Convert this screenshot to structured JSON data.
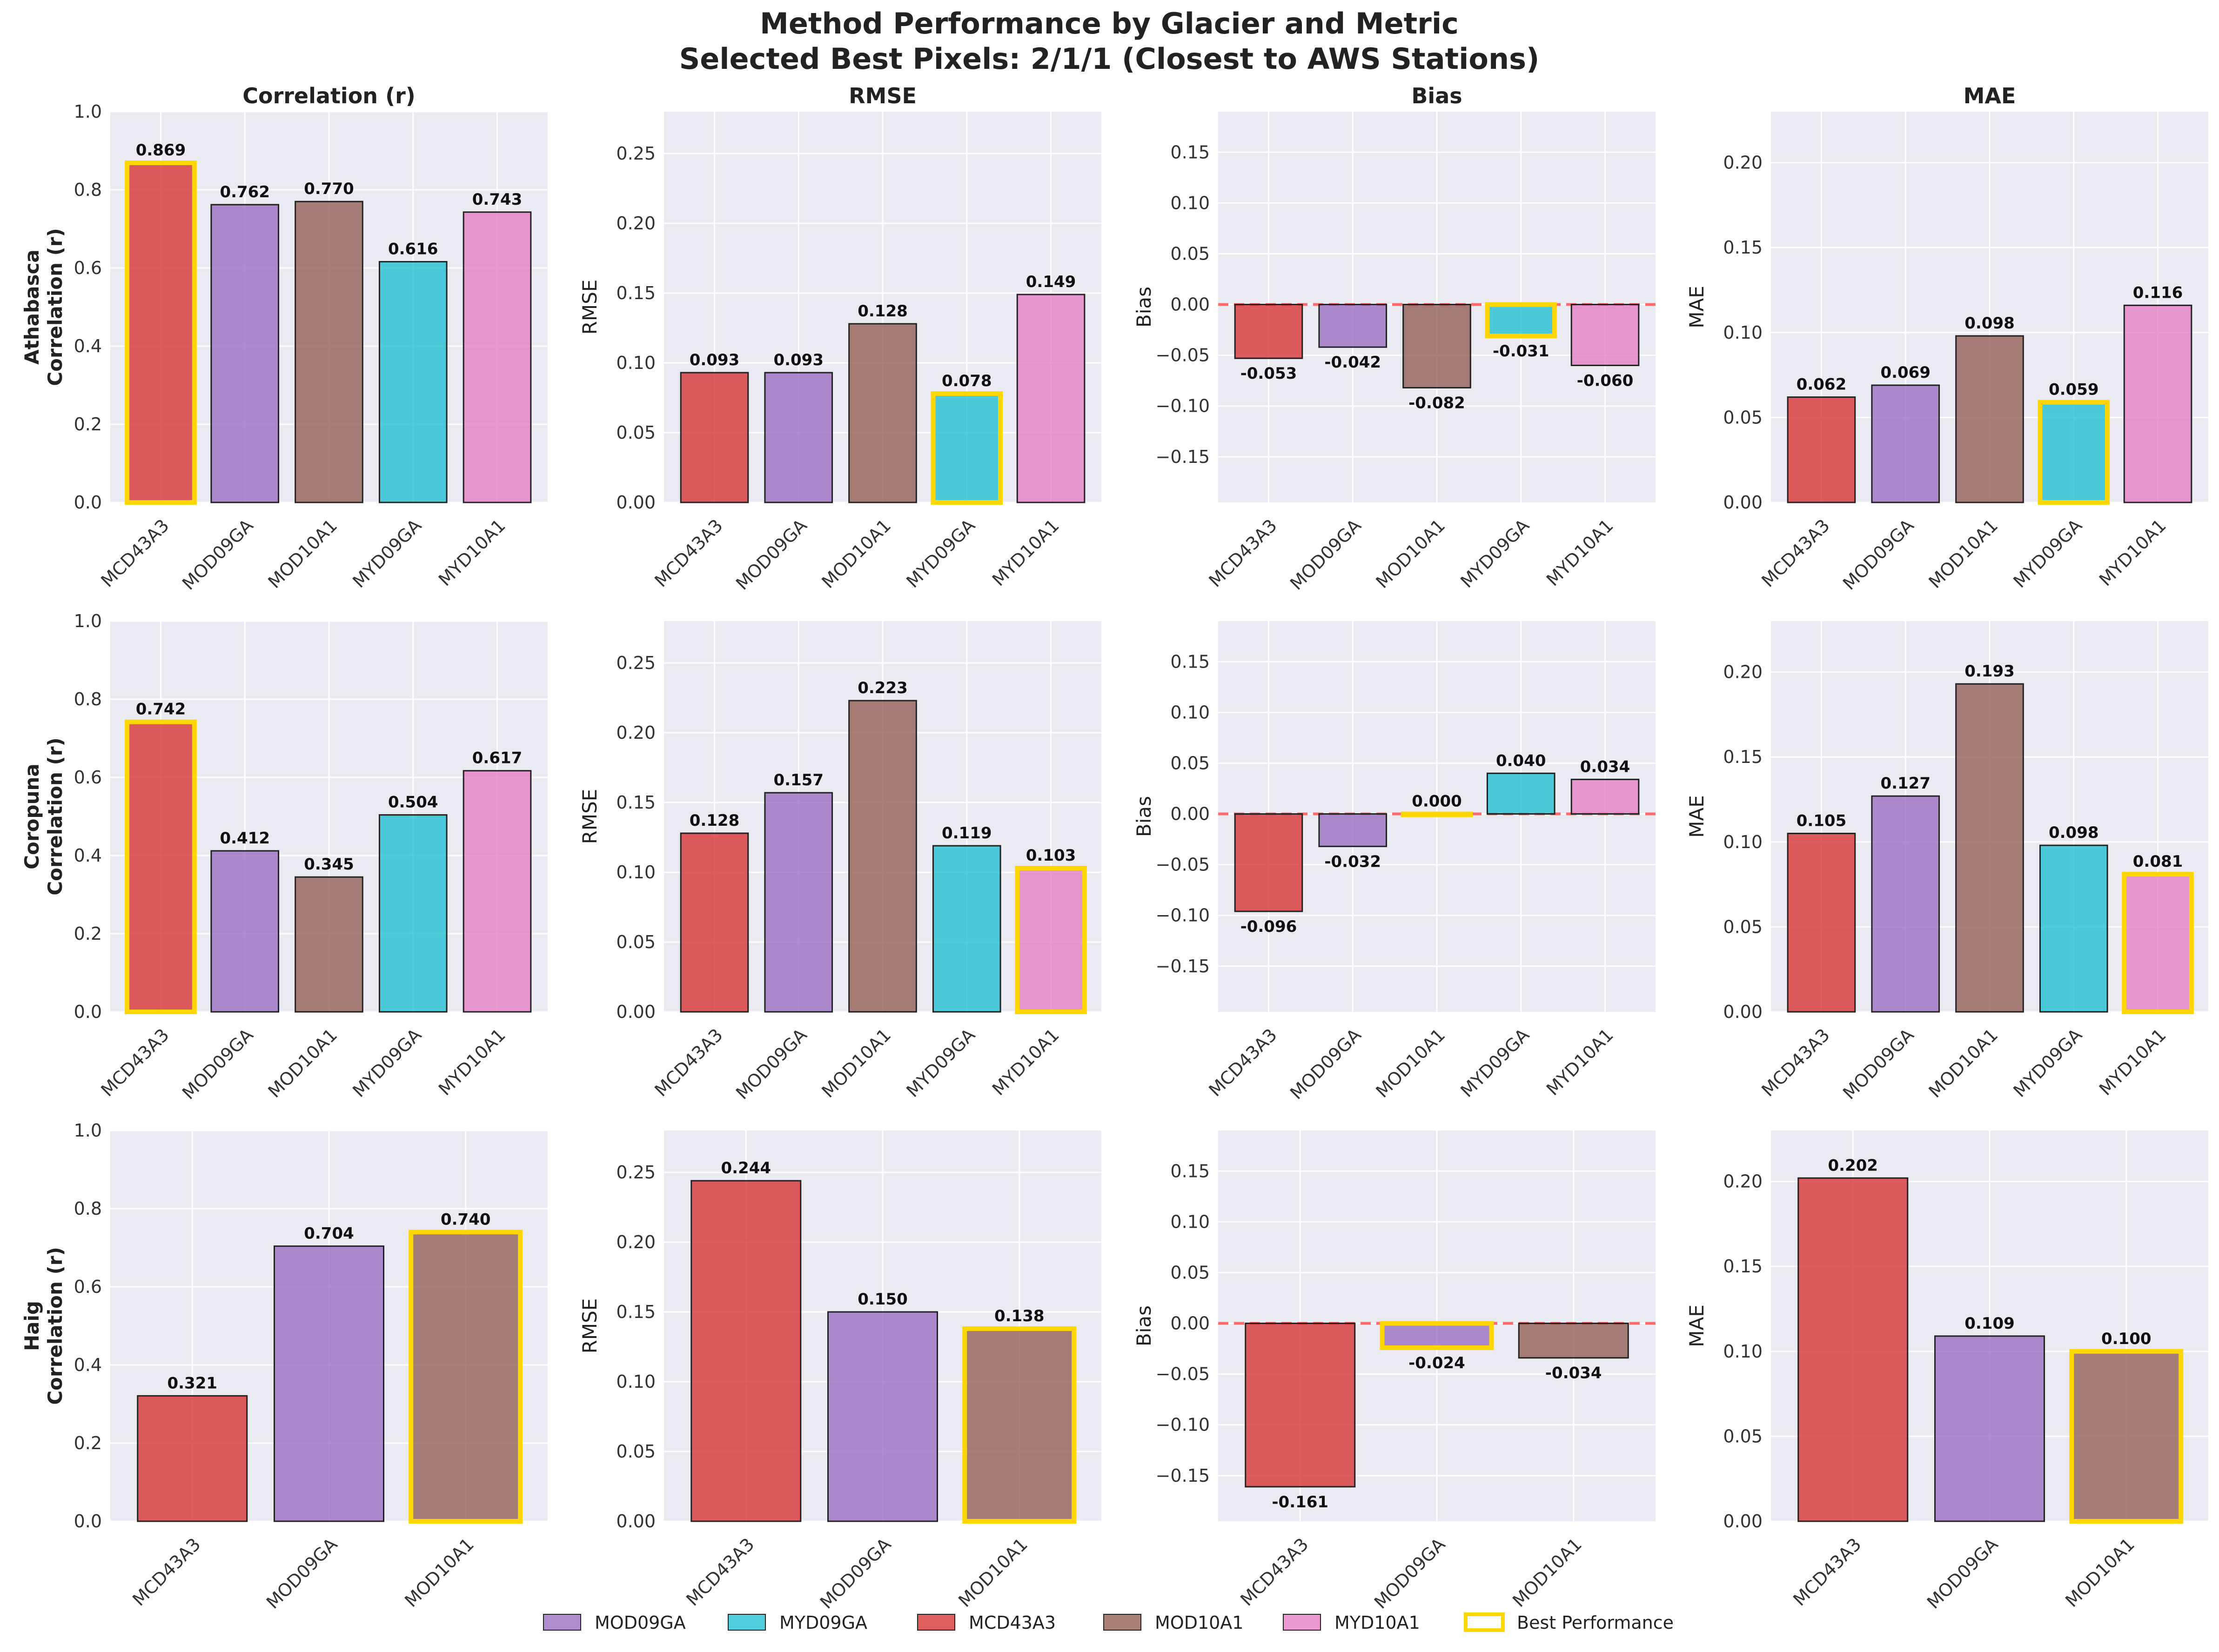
{
  "title_line1": "Method Performance by Glacier and Metric",
  "title_line2": "Selected Best Pixels: 2/1/1 (Closest to AWS Stations)",
  "colors": {
    "MCD43A3": "#d62728",
    "MOD09GA": "#9467bd",
    "MOD10A1": "#8c564b",
    "MYD09GA": "#17becf",
    "MYD10A1": "#e377c2",
    "best_outline": "#ffd700",
    "zero_line": "#ff6b6b",
    "panel_background": "#eaeaf2"
  },
  "legend": [
    {
      "label": "MOD09GA",
      "key": "MOD09GA"
    },
    {
      "label": "MYD09GA",
      "key": "MYD09GA"
    },
    {
      "label": "MCD43A3",
      "key": "MCD43A3"
    },
    {
      "label": "MOD10A1",
      "key": "MOD10A1"
    },
    {
      "label": "MYD10A1",
      "key": "MYD10A1"
    },
    {
      "label": "Best Performance",
      "key": "best"
    }
  ],
  "chart_data": {
    "type": "bar",
    "layout": "grid 3 rows (glaciers) x 4 columns (metrics)",
    "grid": true,
    "legend_position": "bottom",
    "metrics": [
      {
        "title": "Correlation (r)",
        "key": "r",
        "ylim": [
          0,
          1.0
        ],
        "ticks": [
          "0.0",
          "0.2",
          "0.4",
          "0.6",
          "0.8",
          "1.0"
        ],
        "tickvals": [
          0,
          0.2,
          0.4,
          0.6,
          0.8,
          1.0
        ],
        "zero_line": false
      },
      {
        "title": "RMSE",
        "key": "rmse",
        "ylabel": "RMSE",
        "ylim": [
          0,
          0.28
        ],
        "ticks": [
          "0.00",
          "0.05",
          "0.10",
          "0.15",
          "0.20",
          "0.25"
        ],
        "tickvals": [
          0,
          0.05,
          0.1,
          0.15,
          0.2,
          0.25
        ],
        "zero_line": false
      },
      {
        "title": "Bias",
        "key": "bias",
        "ylabel": "Bias",
        "ylim": [
          -0.195,
          0.19
        ],
        "ticks": [
          "−0.15",
          "−0.10",
          "−0.05",
          "0.00",
          "0.05",
          "0.10",
          "0.15"
        ],
        "tickvals": [
          -0.15,
          -0.1,
          -0.05,
          0,
          0.05,
          0.1,
          0.15
        ],
        "zero_line": true
      },
      {
        "title": "MAE",
        "key": "mae",
        "ylabel": "MAE",
        "ylim": [
          0,
          0.23
        ],
        "ticks": [
          "0.00",
          "0.05",
          "0.10",
          "0.15",
          "0.20"
        ],
        "tickvals": [
          0,
          0.05,
          0.1,
          0.15,
          0.2
        ],
        "zero_line": false
      }
    ],
    "glaciers": [
      {
        "name": "Athabasca",
        "row_label_line1": "Athabasca",
        "row_label_line2": "Correlation (r)",
        "methods": [
          "MCD43A3",
          "MOD09GA",
          "MOD10A1",
          "MYD09GA",
          "MYD10A1"
        ],
        "r": {
          "values": [
            0.869,
            0.762,
            0.77,
            0.616,
            0.743
          ],
          "labels": [
            "0.869",
            "0.762",
            "0.770",
            "0.616",
            "0.743"
          ],
          "best": 0
        },
        "rmse": {
          "values": [
            0.093,
            0.093,
            0.128,
            0.078,
            0.149
          ],
          "labels": [
            "0.093",
            "0.093",
            "0.128",
            "0.078",
            "0.149"
          ],
          "best": 3
        },
        "bias": {
          "values": [
            -0.053,
            -0.042,
            -0.082,
            -0.031,
            -0.06
          ],
          "labels": [
            "-0.053",
            "-0.042",
            "-0.082",
            "-0.031",
            "-0.060"
          ],
          "best": 3
        },
        "mae": {
          "values": [
            0.062,
            0.069,
            0.098,
            0.059,
            0.116
          ],
          "labels": [
            "0.062",
            "0.069",
            "0.098",
            "0.059",
            "0.116"
          ],
          "best": 3
        }
      },
      {
        "name": "Coropuna",
        "row_label_line1": "Coropuna",
        "row_label_line2": "Correlation (r)",
        "methods": [
          "MCD43A3",
          "MOD09GA",
          "MOD10A1",
          "MYD09GA",
          "MYD10A1"
        ],
        "r": {
          "values": [
            0.742,
            0.412,
            0.345,
            0.504,
            0.617
          ],
          "labels": [
            "0.742",
            "0.412",
            "0.345",
            "0.504",
            "0.617"
          ],
          "best": 0
        },
        "rmse": {
          "values": [
            0.128,
            0.157,
            0.223,
            0.119,
            0.103
          ],
          "labels": [
            "0.128",
            "0.157",
            "0.223",
            "0.119",
            "0.103"
          ],
          "best": 4
        },
        "bias": {
          "values": [
            -0.096,
            -0.032,
            0.0,
            0.04,
            0.034
          ],
          "labels": [
            "-0.096",
            "-0.032",
            "0.000",
            "0.040",
            "0.034"
          ],
          "best": 2
        },
        "mae": {
          "values": [
            0.105,
            0.127,
            0.193,
            0.098,
            0.081
          ],
          "labels": [
            "0.105",
            "0.127",
            "0.193",
            "0.098",
            "0.081"
          ],
          "best": 4
        }
      },
      {
        "name": "Haig",
        "row_label_line1": "Haig",
        "row_label_line2": "Correlation (r)",
        "methods": [
          "MCD43A3",
          "MOD09GA",
          "MOD10A1"
        ],
        "r": {
          "values": [
            0.321,
            0.704,
            0.74
          ],
          "labels": [
            "0.321",
            "0.704",
            "0.740"
          ],
          "best": 2
        },
        "rmse": {
          "values": [
            0.244,
            0.15,
            0.138
          ],
          "labels": [
            "0.244",
            "0.150",
            "0.138"
          ],
          "best": 2
        },
        "bias": {
          "values": [
            -0.161,
            -0.024,
            -0.034
          ],
          "labels": [
            "-0.161",
            "-0.024",
            "-0.034"
          ],
          "best": 1
        },
        "mae": {
          "values": [
            0.202,
            0.109,
            0.1
          ],
          "labels": [
            "0.202",
            "0.109",
            "0.100"
          ],
          "best": 2
        }
      }
    ]
  }
}
